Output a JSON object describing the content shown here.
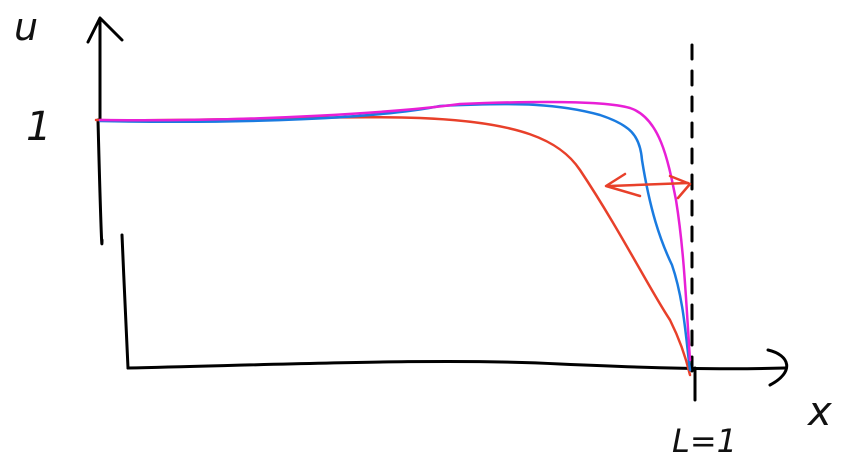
{
  "labels": {
    "y_axis": "u",
    "y_mark": "1",
    "x_axis": "x",
    "x_mark": "L=1"
  }
}
